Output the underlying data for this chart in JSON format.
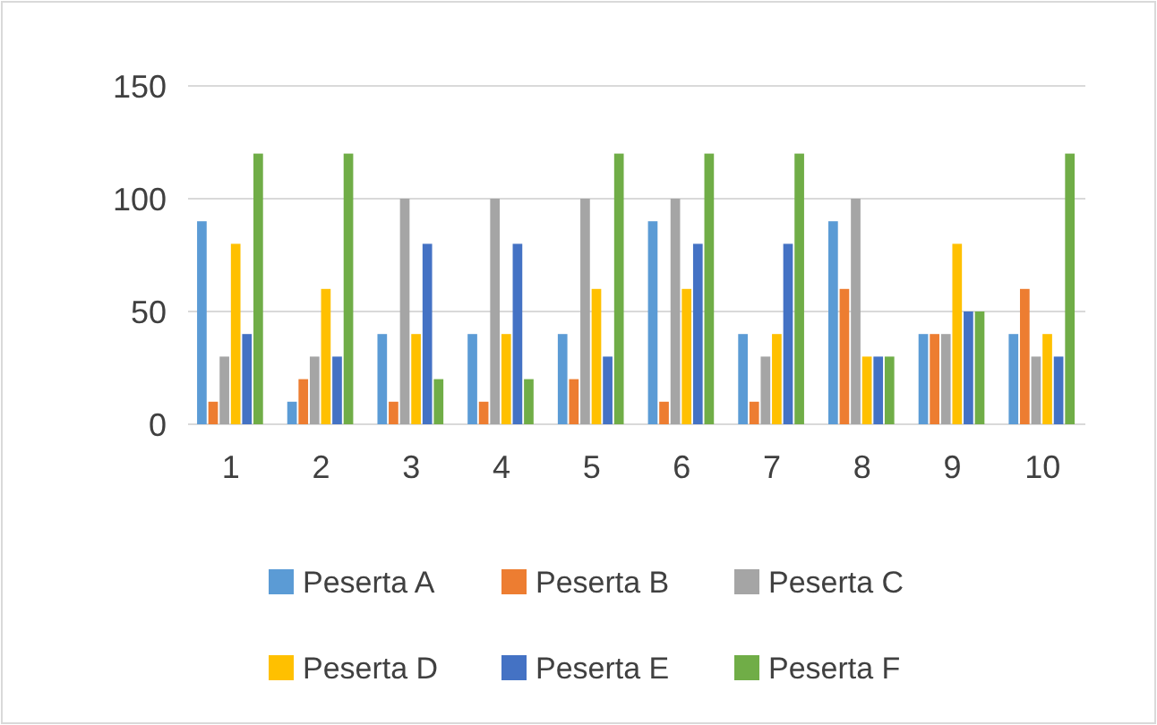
{
  "chart_data": {
    "type": "bar",
    "categories": [
      "1",
      "2",
      "3",
      "4",
      "5",
      "6",
      "7",
      "8",
      "9",
      "10"
    ],
    "series": [
      {
        "name": "Peserta A",
        "color": "#5b9bd5",
        "values": [
          90,
          10,
          40,
          40,
          40,
          90,
          40,
          90,
          40,
          40
        ]
      },
      {
        "name": "Peserta B",
        "color": "#ed7d31",
        "values": [
          10,
          20,
          10,
          10,
          20,
          10,
          10,
          60,
          40,
          60
        ]
      },
      {
        "name": "Peserta C",
        "color": "#a5a5a5",
        "values": [
          30,
          30,
          100,
          100,
          100,
          100,
          30,
          100,
          40,
          30
        ]
      },
      {
        "name": "Peserta D",
        "color": "#ffc000",
        "values": [
          80,
          60,
          40,
          40,
          60,
          60,
          40,
          30,
          80,
          40
        ]
      },
      {
        "name": "Peserta E",
        "color": "#4472c4",
        "values": [
          40,
          30,
          80,
          80,
          30,
          80,
          80,
          30,
          50,
          30
        ]
      },
      {
        "name": "Peserta F",
        "color": "#70ad47",
        "values": [
          120,
          120,
          20,
          20,
          120,
          120,
          120,
          30,
          50,
          120
        ]
      }
    ],
    "ylim": [
      0,
      150
    ],
    "yticks": [
      0,
      50,
      100,
      150
    ],
    "grid": "y",
    "legend": "bottom"
  }
}
